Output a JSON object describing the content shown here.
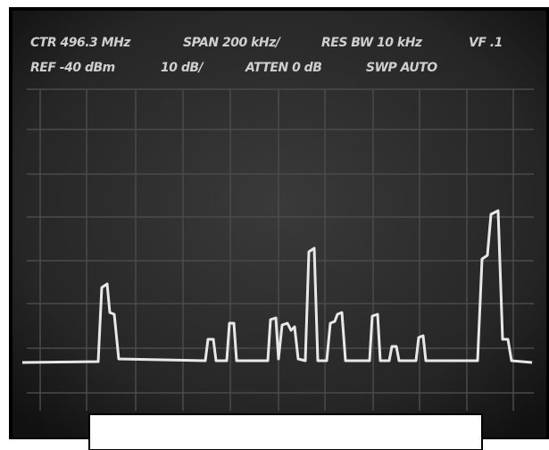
{
  "screen": {
    "header": {
      "row1": [
        "CTR  496.3 MHz",
        "SPAN 200 kHz/",
        "RES BW 10 kHz",
        "VF .1"
      ],
      "row2": [
        "REF -40 dBm",
        "10 dB/",
        "ATTEN 0 dB",
        "SWP  AUTO"
      ]
    }
  }
}
